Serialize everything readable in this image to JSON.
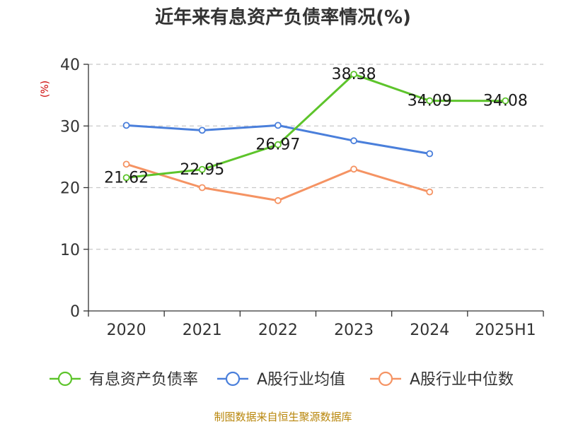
{
  "chart_data": {
    "type": "line",
    "title": "近年来有息资产负债率情况(%)",
    "ylabel": "(%)",
    "xlabel": "",
    "categories": [
      "2020",
      "2021",
      "2022",
      "2023",
      "2024",
      "2025H1"
    ],
    "ylim": [
      0,
      40
    ],
    "yticks": [
      0,
      10,
      20,
      30,
      40
    ],
    "grid": "horizontal-dashed",
    "legend_position": "bottom",
    "series": [
      {
        "name": "有息资产负债率",
        "color": "#5dc42b",
        "values": [
          21.62,
          22.95,
          26.97,
          38.38,
          34.09,
          34.08
        ],
        "labels": [
          "21.62",
          "22.95",
          "26.97",
          "38.38",
          "34.09",
          "34.08"
        ]
      },
      {
        "name": "A股行业均值",
        "color": "#4a7fdb",
        "values": [
          30.1,
          29.3,
          30.1,
          27.6,
          25.5,
          null
        ]
      },
      {
        "name": "A股行业中位数",
        "color": "#f59363",
        "values": [
          23.8,
          20.0,
          17.9,
          23.0,
          19.3,
          null
        ]
      }
    ]
  },
  "footer": {
    "source": "制图数据来自恒生聚源数据库"
  }
}
